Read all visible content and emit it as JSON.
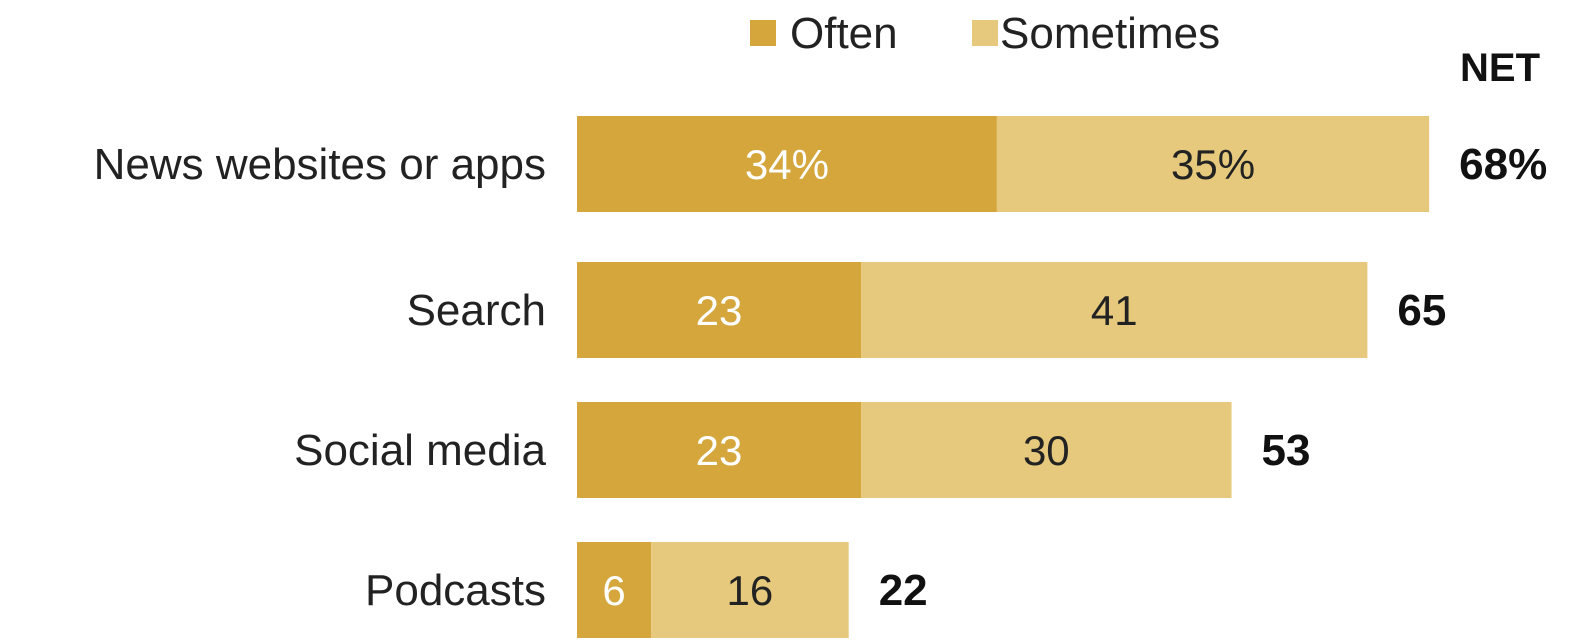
{
  "chart_data": {
    "type": "bar",
    "orientation": "horizontal",
    "stacked": true,
    "categories": [
      "News websites or apps",
      "Search",
      "Social media",
      "Podcasts"
    ],
    "series": [
      {
        "name": "Often",
        "values": [
          34,
          23,
          23,
          6
        ],
        "labels": [
          "34%",
          "23",
          "23",
          "6"
        ],
        "color": "#d4a63c"
      },
      {
        "name": "Sometimes",
        "values": [
          35,
          41,
          30,
          16
        ],
        "labels": [
          "35%",
          "41",
          "30",
          "16"
        ],
        "color": "#e6c97c"
      }
    ],
    "net": {
      "header": "NET",
      "values": [
        68,
        65,
        53,
        22
      ],
      "labels": [
        "68%",
        "65",
        "53",
        "22"
      ]
    },
    "legend": {
      "placement": "top",
      "items": [
        "Often",
        "Sometimes"
      ]
    },
    "xlim": [
      0,
      70
    ],
    "grid": false,
    "colors": {
      "often_text": "#ffffff",
      "sometimes_text": "#222222"
    }
  }
}
